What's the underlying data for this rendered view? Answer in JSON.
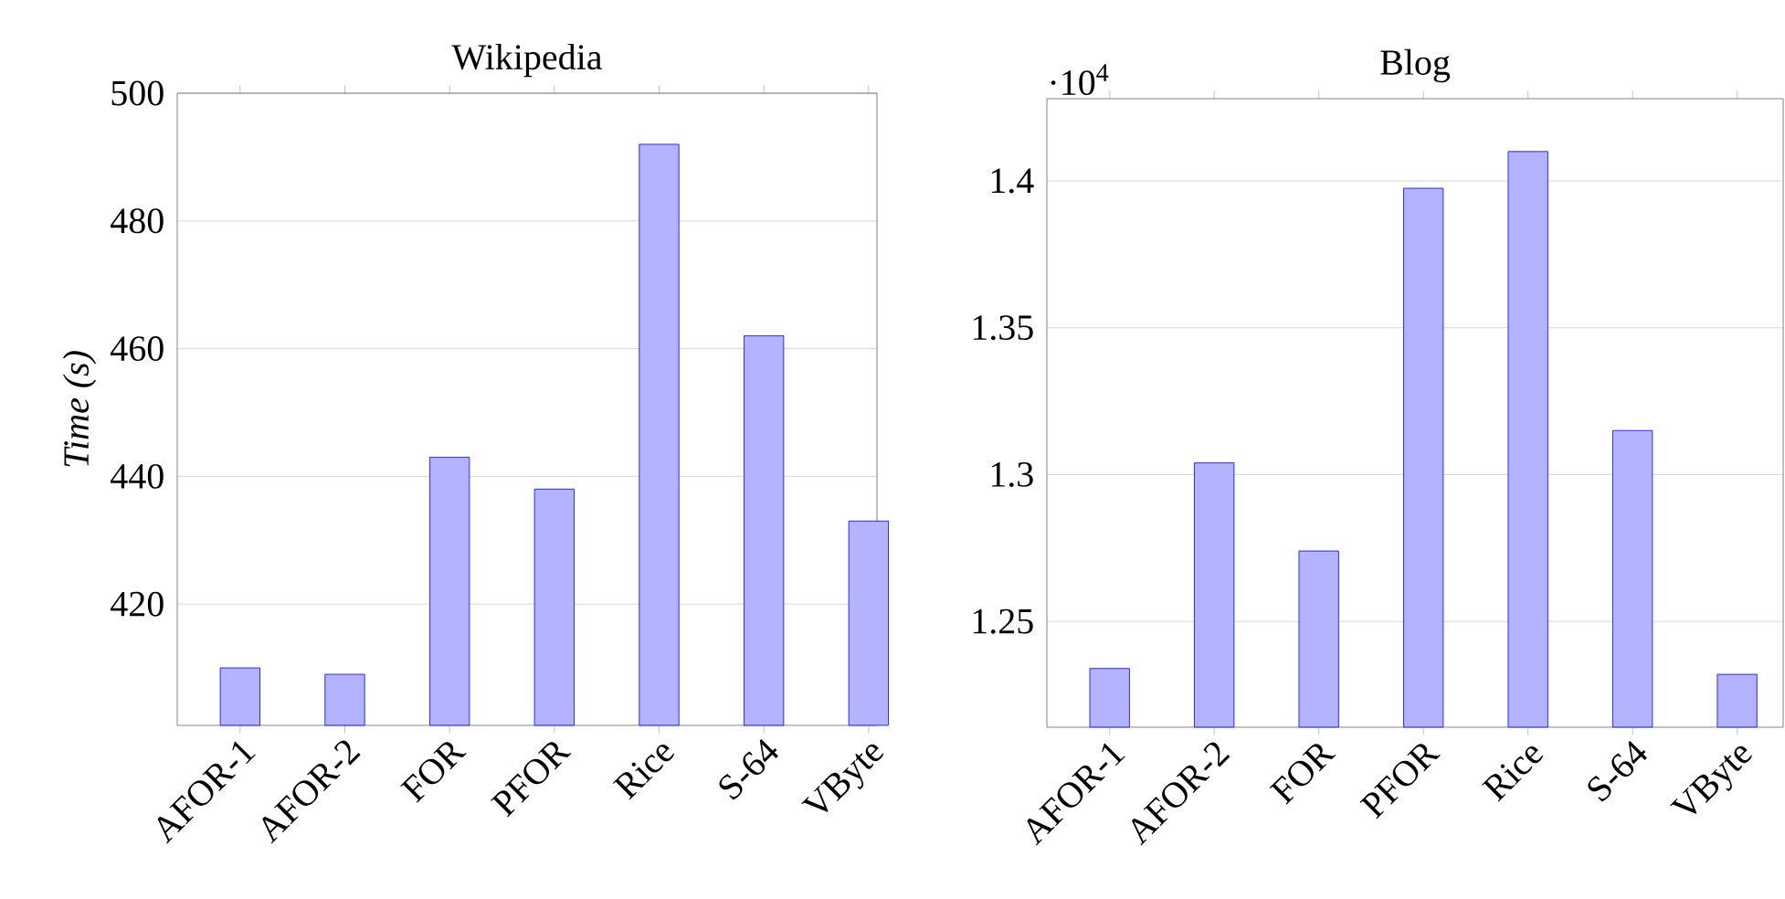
{
  "chart_data": [
    {
      "type": "bar",
      "title": "Wikipedia",
      "ylabel": "Time (s)",
      "categories": [
        "AFOR-1",
        "AFOR-2",
        "FOR",
        "PFOR",
        "Rice",
        "S-64",
        "VByte"
      ],
      "values": [
        410,
        409,
        443,
        438,
        492,
        462,
        433
      ],
      "color": "#b3b3ff",
      "ylim": [
        401,
        500
      ],
      "yticks": [
        420,
        440,
        460,
        480,
        500
      ],
      "grid": "y"
    },
    {
      "type": "bar",
      "title": "Blog",
      "annotations": [
        "·10$^{4}$"
      ],
      "categories": [
        "AFOR-1",
        "AFOR-2",
        "FOR",
        "PFOR",
        "Rice",
        "S-64",
        "VByte"
      ],
      "values": [
        1.234,
        1.304,
        1.274,
        1.3975,
        1.41,
        1.315,
        1.232
      ],
      "color": "#b3b3ff",
      "ylim": [
        1.214,
        1.428
      ],
      "yticks": [
        1.25,
        1.3,
        1.35,
        1.4
      ],
      "grid": "y"
    }
  ]
}
